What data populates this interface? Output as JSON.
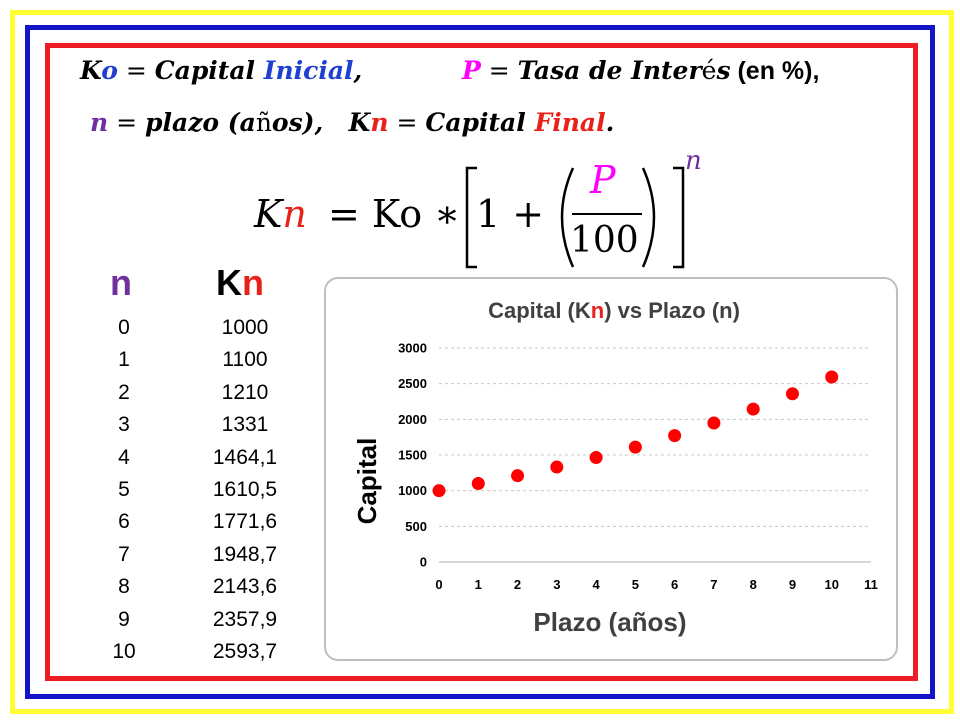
{
  "definitions": {
    "ko_a": "K",
    "ko_b": "o",
    "ko_label_a": "Capital ",
    "ko_label_b": "Inicial",
    "ko_sep": ",",
    "p_a": "P",
    "p_label_a": "Tasa de Inter",
    "p_label_b": "é",
    "p_label_c": "s",
    "p_note": " (en %),",
    "n_a": "n",
    "n_label_a": "plazo (a",
    "n_label_b": "ñ",
    "n_label_c": "os),",
    "kn_a": "K",
    "kn_b": "n",
    "kn_label_a": "Capital ",
    "kn_label_b": "Final",
    "kn_end": ".",
    "equals": " = "
  },
  "formula": {
    "lhs_a": "K",
    "lhs_b": "n",
    "rhs": "= Ko ∗",
    "one_plus": "1 +",
    "numerator": "P",
    "denominator": "100",
    "exponent": "n"
  },
  "table": {
    "header_n": "n",
    "header_kn_a": "K",
    "header_kn_b": "n",
    "n_values": [
      "0",
      "1",
      "2",
      "3",
      "4",
      "5",
      "6",
      "7",
      "8",
      "9",
      "10"
    ],
    "kn_values": [
      "1000",
      "1100",
      "1210",
      "1331",
      "1464,1",
      "1610,5",
      "1771,6",
      "1948,7",
      "2143,6",
      "2357,9",
      "2593,7"
    ]
  },
  "chart_data": {
    "type": "scatter",
    "title_a": "Capital (K",
    "title_b": "n",
    "title_c": ") vs Plazo (n)",
    "xlabel": "Plazo (años)",
    "ylabel": "Capital",
    "xlim": [
      0,
      11
    ],
    "ylim": [
      0,
      3000
    ],
    "x_ticks": [
      "0",
      "1",
      "2",
      "3",
      "4",
      "5",
      "6",
      "7",
      "8",
      "9",
      "10",
      "11"
    ],
    "y_ticks": [
      "0",
      "500",
      "1000",
      "1500",
      "2000",
      "2500",
      "3000"
    ],
    "grid": "horizontal dashed",
    "point_color": "#ff0000",
    "x": [
      0,
      1,
      2,
      3,
      4,
      5,
      6,
      7,
      8,
      9,
      10
    ],
    "y": [
      1000,
      1100,
      1210,
      1331,
      1464.1,
      1610.5,
      1771.6,
      1948.7,
      2143.6,
      2357.9,
      2593.7
    ]
  }
}
